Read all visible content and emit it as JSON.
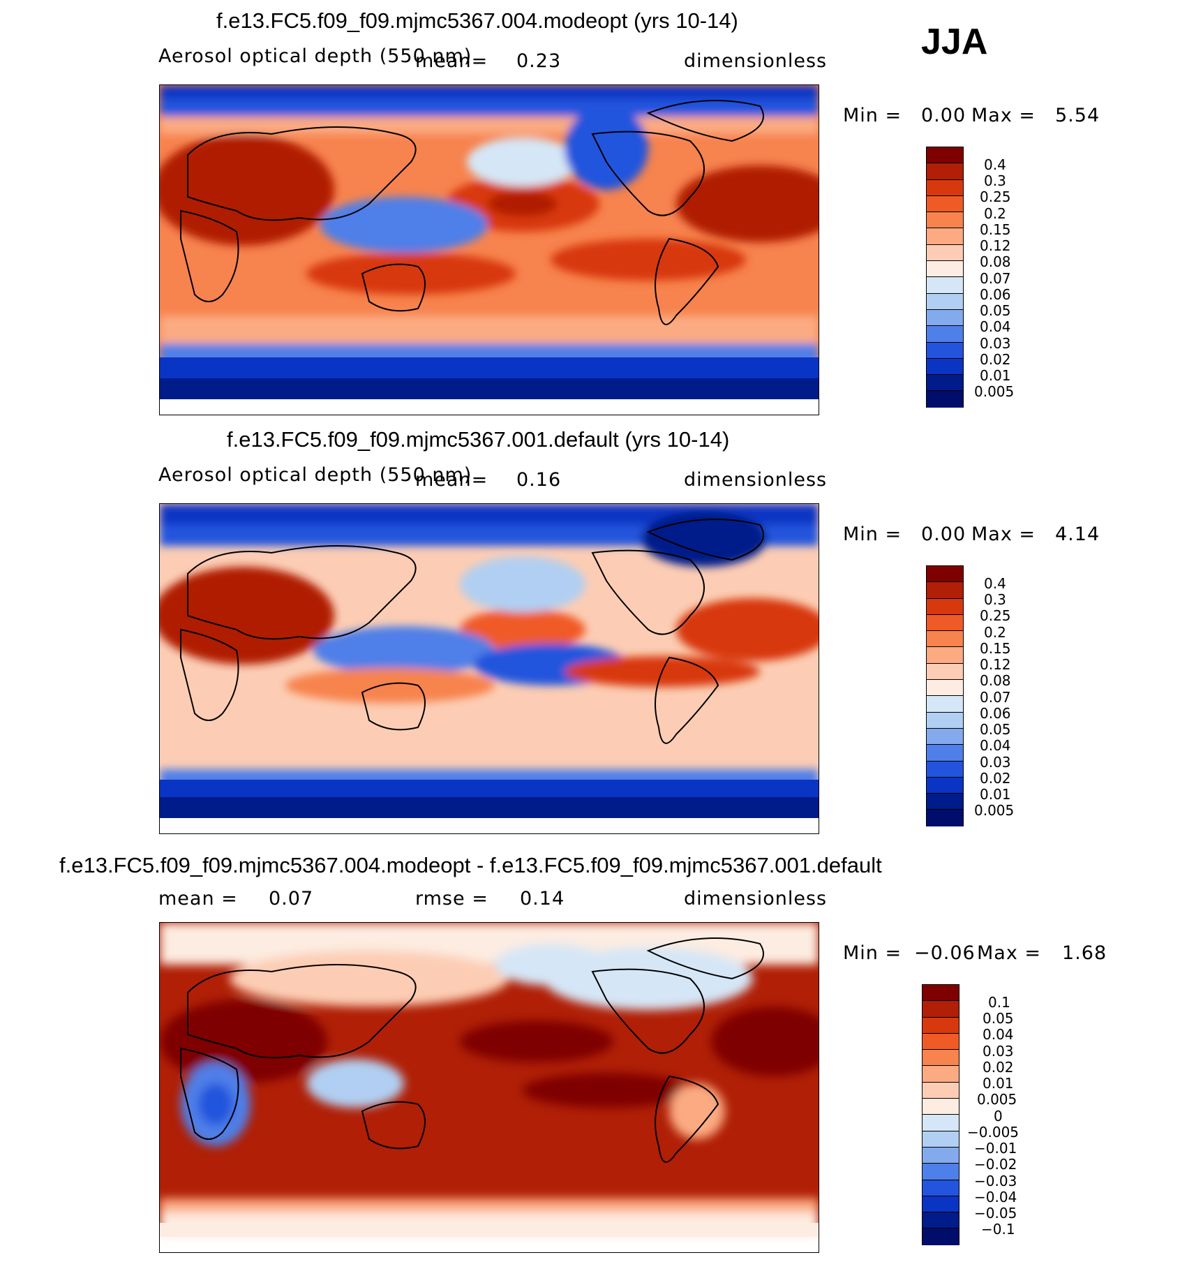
{
  "season": "JJA",
  "panels": [
    {
      "title": "f.e13.FC5.f09_f09.mjmc5367.004.modeopt (yrs 10-14)",
      "variable": "Aerosol optical depth (550 nm)",
      "stat_label": "mean=",
      "stat_value": "0.23",
      "units": "dimensionless",
      "min_label": "Min =",
      "min_value": "0.00",
      "max_label": "Max =",
      "max_value": "5.54",
      "colorbar_labels": [
        "0.4",
        "0.3",
        "0.25",
        "0.2",
        "0.15",
        "0.12",
        "0.08",
        "0.07",
        "0.06",
        "0.05",
        "0.04",
        "0.03",
        "0.02",
        "0.01",
        "0.005"
      ]
    },
    {
      "title": "f.e13.FC5.f09_f09.mjmc5367.001.default (yrs 10-14)",
      "variable": "Aerosol optical depth (550 nm)",
      "stat_label": "mean=",
      "stat_value": "0.16",
      "units": "dimensionless",
      "min_label": "Min =",
      "min_value": "0.00",
      "max_label": "Max =",
      "max_value": "4.14",
      "colorbar_labels": [
        "0.4",
        "0.3",
        "0.25",
        "0.2",
        "0.15",
        "0.12",
        "0.08",
        "0.07",
        "0.06",
        "0.05",
        "0.04",
        "0.03",
        "0.02",
        "0.01",
        "0.005"
      ]
    },
    {
      "title": "f.e13.FC5.f09_f09.mjmc5367.004.modeopt - f.e13.FC5.f09_f09.mjmc5367.001.default",
      "mean_label": "mean =",
      "mean_value": "0.07",
      "rmse_label": "rmse =",
      "rmse_value": "0.14",
      "units": "dimensionless",
      "min_label": "Min =",
      "min_value": "−0.06",
      "max_label": "Max =",
      "max_value": "1.68",
      "colorbar_labels": [
        "0.1",
        "0.05",
        "0.04",
        "0.03",
        "0.02",
        "0.01",
        "0.005",
        "0",
        "−0.005",
        "−0.01",
        "−0.02",
        "−0.03",
        "−0.04",
        "−0.05",
        "−0.1"
      ]
    }
  ],
  "colors": {
    "abs_scale": [
      "#7f0000",
      "#b01f06",
      "#d8380e",
      "#f05a26",
      "#f7834e",
      "#fbaa82",
      "#fccdb4",
      "#fdece1",
      "#d5e6f6",
      "#b1cff2",
      "#84aaee",
      "#4f7fe8",
      "#2354dd",
      "#0a34c4",
      "#001b8a",
      "#000d6b"
    ],
    "diff_scale": [
      "#7f0000",
      "#b01f06",
      "#d8380e",
      "#f05a26",
      "#f7834e",
      "#fbaa82",
      "#fccdb4",
      "#fdece1",
      "#d5e6f6",
      "#b1cff2",
      "#84aaee",
      "#4f7fe8",
      "#2354dd",
      "#0a34c4",
      "#001b8a",
      "#000d6b"
    ],
    "coastline": "#000000"
  }
}
